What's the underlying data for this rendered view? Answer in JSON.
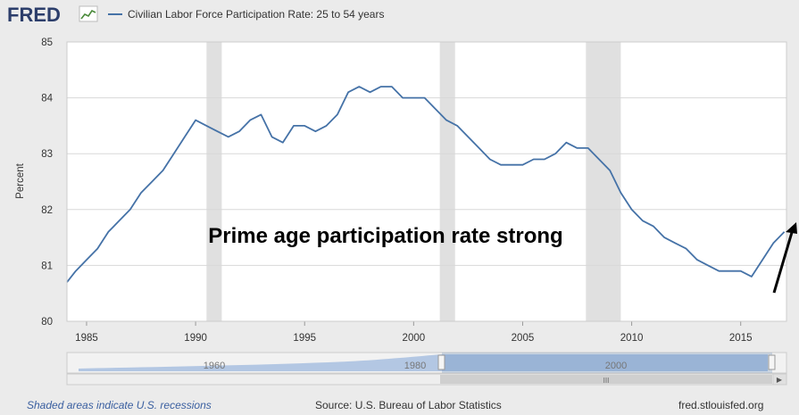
{
  "header": {
    "logo": "FRED",
    "legend_label": "Civilian Labor Force Participation Rate: 25 to 54 years"
  },
  "annotation": "Prime age participation rate strong",
  "navigator": {
    "labels": [
      "1960",
      "1980",
      "2000"
    ]
  },
  "footer": {
    "recessions_note": "Shaded areas indicate U.S. recessions",
    "source": "Source: U.S. Bureau of Labor Statistics",
    "site": "fred.stlouisfed.org"
  },
  "colors": {
    "series": "#4572a7",
    "recession": "#e0e0e0",
    "background": "#ebebeb",
    "navigator_fill": "#a8c0e0"
  },
  "chart_data": {
    "type": "line",
    "title": "",
    "xlabel": "",
    "ylabel": "Percent",
    "xlim": [
      1984.1,
      2017.1
    ],
    "ylim": [
      80,
      85
    ],
    "x_ticks": [
      1985,
      1990,
      1995,
      2000,
      2005,
      2010,
      2015
    ],
    "y_ticks": [
      80,
      81,
      82,
      83,
      84,
      85
    ],
    "grid": "horizontal",
    "legend_position": "top-left",
    "recessions": [
      [
        1990.5,
        1991.2
      ],
      [
        2001.2,
        2001.9
      ],
      [
        2007.9,
        2009.5
      ]
    ],
    "series": [
      {
        "name": "Civilian Labor Force Participation Rate: 25 to 54 years",
        "x": [
          1984.1,
          1984.5,
          1985.0,
          1985.5,
          1986.0,
          1986.5,
          1987.0,
          1987.5,
          1988.0,
          1988.5,
          1989.0,
          1989.5,
          1990.0,
          1990.5,
          1991.0,
          1991.5,
          1992.0,
          1992.5,
          1993.0,
          1993.5,
          1994.0,
          1994.5,
          1995.0,
          1995.5,
          1996.0,
          1996.5,
          1997.0,
          1997.5,
          1998.0,
          1998.5,
          1999.0,
          1999.5,
          2000.0,
          2000.5,
          2001.0,
          2001.5,
          2002.0,
          2002.5,
          2003.0,
          2003.5,
          2004.0,
          2004.5,
          2005.0,
          2005.5,
          2006.0,
          2006.5,
          2007.0,
          2007.5,
          2008.0,
          2008.5,
          2009.0,
          2009.5,
          2010.0,
          2010.5,
          2011.0,
          2011.5,
          2012.0,
          2012.5,
          2013.0,
          2013.5,
          2014.0,
          2014.5,
          2015.0,
          2015.5,
          2016.0,
          2016.5,
          2017.0
        ],
        "values": [
          80.7,
          80.9,
          81.1,
          81.3,
          81.6,
          81.8,
          82.0,
          82.3,
          82.5,
          82.7,
          83.0,
          83.3,
          83.6,
          83.5,
          83.4,
          83.3,
          83.4,
          83.6,
          83.7,
          83.3,
          83.2,
          83.5,
          83.5,
          83.4,
          83.5,
          83.7,
          84.1,
          84.2,
          84.1,
          84.2,
          84.2,
          84.0,
          84.0,
          84.0,
          83.8,
          83.6,
          83.5,
          83.3,
          83.1,
          82.9,
          82.8,
          82.8,
          82.8,
          82.9,
          82.9,
          83.0,
          83.2,
          83.1,
          83.1,
          82.9,
          82.7,
          82.3,
          82.0,
          81.8,
          81.7,
          81.5,
          81.4,
          81.3,
          81.1,
          81.0,
          80.9,
          80.9,
          80.9,
          80.8,
          81.1,
          81.4,
          81.6
        ]
      }
    ]
  }
}
